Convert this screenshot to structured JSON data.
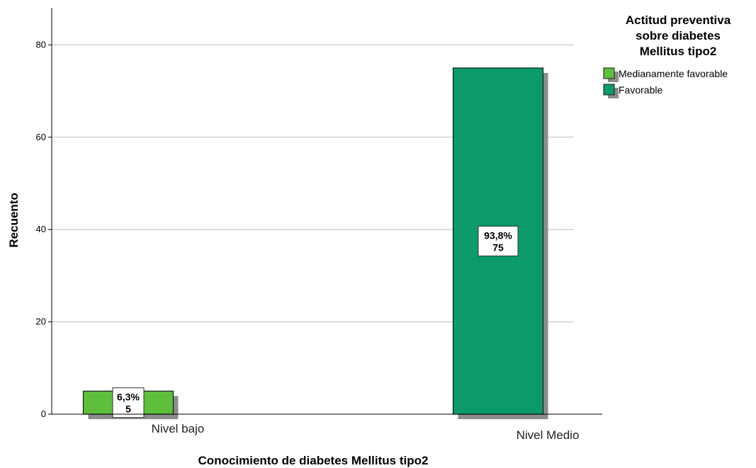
{
  "chart_data": {
    "type": "bar",
    "xlabel": "Conocimiento de diabetes Mellitus tipo2",
    "ylabel": "Recuento",
    "ylim": [
      0,
      88
    ],
    "yticks": [
      0,
      20,
      40,
      60,
      80
    ],
    "grid": true,
    "categories": [
      "Nivel bajo",
      "Nivel Medio"
    ],
    "legend": {
      "title_lines": [
        "Actitud preventiva",
        "sobre diabetes",
        "Mellitus tipo2"
      ],
      "placement": "top-right",
      "items": [
        {
          "label": "Medianamente favorable",
          "color": "#5dbf3a"
        },
        {
          "label": "Favorable",
          "color": "#0b9b6a"
        }
      ]
    },
    "bars": [
      {
        "category": "Nivel bajo",
        "series": "Medianamente favorable",
        "value": 5,
        "percent_label": "6,3%",
        "count_label": "5",
        "color": "#5dbf3a"
      },
      {
        "category": "Nivel Medio",
        "series": "Favorable",
        "value": 75,
        "percent_label": "93,8%",
        "count_label": "75",
        "color": "#0b9b6a"
      }
    ]
  }
}
